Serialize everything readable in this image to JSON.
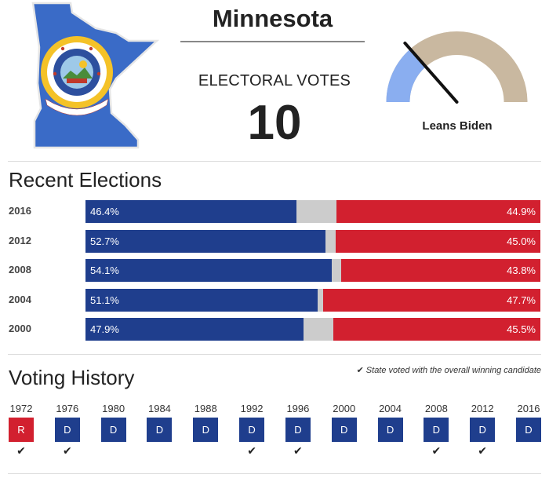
{
  "state": {
    "name": "Minnesota",
    "icon": "minnesota-flag-map-icon"
  },
  "electoral": {
    "label": "ELECTORAL VOTES",
    "value": "10"
  },
  "forecast": {
    "label": "Leans Biden",
    "lean_fraction": 0.27
  },
  "colors": {
    "dem": "#1f3e8d",
    "rep": "#d2202f",
    "other": "#cccccc",
    "gauge_track": "#c9b8a0",
    "gauge_lean": "#8aaef0"
  },
  "recent": {
    "title": "Recent Elections",
    "rows": [
      {
        "year": "2016",
        "dem": 46.4,
        "rep": 44.9,
        "dem_label": "46.4%",
        "rep_label": "44.9%"
      },
      {
        "year": "2012",
        "dem": 52.7,
        "rep": 45.0,
        "dem_label": "52.7%",
        "rep_label": "45.0%"
      },
      {
        "year": "2008",
        "dem": 54.1,
        "rep": 43.8,
        "dem_label": "54.1%",
        "rep_label": "43.8%"
      },
      {
        "year": "2004",
        "dem": 51.1,
        "rep": 47.7,
        "dem_label": "51.1%",
        "rep_label": "47.7%"
      },
      {
        "year": "2000",
        "dem": 47.9,
        "rep": 45.5,
        "dem_label": "47.9%",
        "rep_label": "45.5%"
      }
    ]
  },
  "history": {
    "title": "Voting History",
    "note": "State voted with the overall winning candidate",
    "items": [
      {
        "year": "1972",
        "party": "R",
        "winner": true
      },
      {
        "year": "1976",
        "party": "D",
        "winner": true
      },
      {
        "year": "1980",
        "party": "D",
        "winner": false
      },
      {
        "year": "1984",
        "party": "D",
        "winner": false
      },
      {
        "year": "1988",
        "party": "D",
        "winner": false
      },
      {
        "year": "1992",
        "party": "D",
        "winner": true
      },
      {
        "year": "1996",
        "party": "D",
        "winner": true
      },
      {
        "year": "2000",
        "party": "D",
        "winner": false
      },
      {
        "year": "2004",
        "party": "D",
        "winner": false
      },
      {
        "year": "2008",
        "party": "D",
        "winner": true
      },
      {
        "year": "2012",
        "party": "D",
        "winner": true
      },
      {
        "year": "2016",
        "party": "D",
        "winner": false
      }
    ]
  }
}
